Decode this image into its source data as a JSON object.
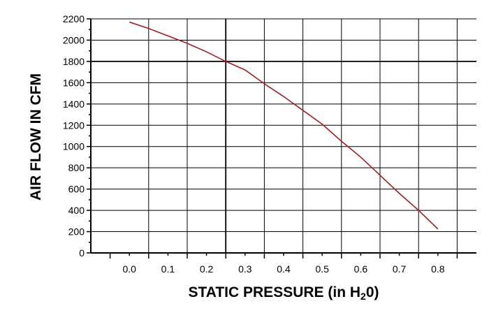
{
  "chart_data": {
    "type": "line",
    "xlabel": {
      "main": "STATIC PRESSURE (in H",
      "sub": "2",
      "tail": "0)"
    },
    "ylabel": "AIR FLOW IN CFM",
    "xlim": [
      -0.1,
      0.9
    ],
    "ylim": [
      0,
      2200
    ],
    "x_ticks": [
      0.0,
      0.1,
      0.2,
      0.3,
      0.4,
      0.5,
      0.6,
      0.7,
      0.8
    ],
    "x_tick_labels": [
      "0.0",
      "0.1",
      "0.2",
      "0.3",
      "0.4",
      "0.5",
      "0.6",
      "0.7",
      "0.8"
    ],
    "y_ticks": [
      0,
      200,
      400,
      600,
      800,
      1000,
      1200,
      1400,
      1600,
      1800,
      2000,
      2200
    ],
    "y_tick_labels": [
      "0",
      "200",
      "400",
      "600",
      "800",
      "1000",
      "1200",
      "1400",
      "1600",
      "1800",
      "2000",
      "2200"
    ],
    "grid": true,
    "series": [
      {
        "color": "#a51e22",
        "x": [
          0.0,
          0.05,
          0.1,
          0.15,
          0.2,
          0.25,
          0.3,
          0.35,
          0.4,
          0.45,
          0.5,
          0.55,
          0.6,
          0.65,
          0.7,
          0.75,
          0.8
        ],
        "y": [
          2170,
          2110,
          2040,
          1970,
          1890,
          1800,
          1720,
          1590,
          1470,
          1340,
          1210,
          1050,
          900,
          730,
          560,
          400,
          225
        ]
      }
    ]
  }
}
